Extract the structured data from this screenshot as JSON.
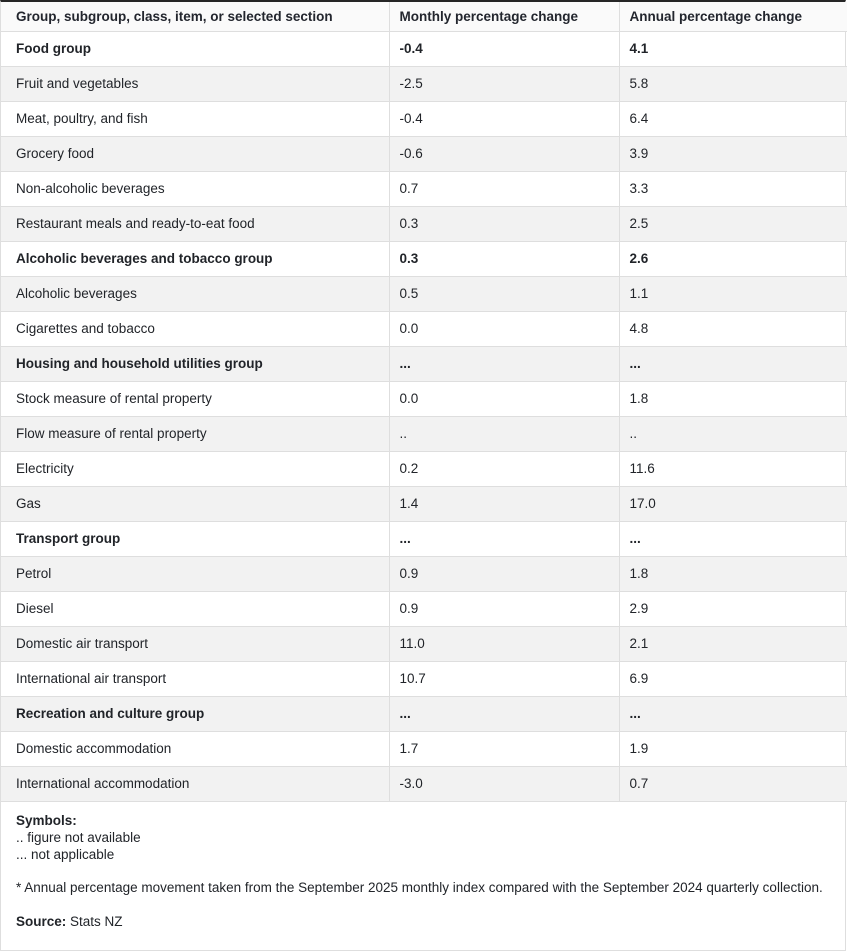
{
  "table": {
    "columns": [
      "Group, subgroup, class, item, or selected section",
      "Monthly percentage change",
      "Annual percentage change"
    ],
    "rows": [
      {
        "label": "Food group",
        "monthly": "-0.4",
        "annual": "4.1",
        "bold": true
      },
      {
        "label": "Fruit and vegetables",
        "monthly": "-2.5",
        "annual": "5.8",
        "bold": false
      },
      {
        "label": "Meat, poultry, and fish",
        "monthly": "-0.4",
        "annual": "6.4",
        "bold": false
      },
      {
        "label": "Grocery food",
        "monthly": "-0.6",
        "annual": "3.9",
        "bold": false
      },
      {
        "label": "Non-alcoholic beverages",
        "monthly": "0.7",
        "annual": "3.3",
        "bold": false
      },
      {
        "label": "Restaurant meals and ready-to-eat food",
        "monthly": "0.3",
        "annual": "2.5",
        "bold": false
      },
      {
        "label": "Alcoholic beverages and tobacco group",
        "monthly": "0.3",
        "annual": "2.6",
        "bold": true
      },
      {
        "label": "Alcoholic beverages",
        "monthly": "0.5",
        "annual": "1.1",
        "bold": false
      },
      {
        "label": "Cigarettes and tobacco",
        "monthly": "0.0",
        "annual": "4.8",
        "bold": false
      },
      {
        "label": "Housing and household utilities group",
        "monthly": "...",
        "annual": "...",
        "bold": true
      },
      {
        "label": "Stock measure of rental property",
        "monthly": "0.0",
        "annual": "1.8",
        "bold": false
      },
      {
        "label": "Flow measure of rental property",
        "monthly": "..",
        "annual": "..",
        "bold": false
      },
      {
        "label": "Electricity",
        "monthly": "0.2",
        "annual": "11.6",
        "bold": false
      },
      {
        "label": "Gas",
        "monthly": "1.4",
        "annual": "17.0",
        "bold": false
      },
      {
        "label": "Transport group",
        "monthly": "...",
        "annual": "...",
        "bold": true
      },
      {
        "label": "Petrol",
        "monthly": "0.9",
        "annual": "1.8",
        "bold": false
      },
      {
        "label": "Diesel",
        "monthly": "0.9",
        "annual": "2.9",
        "bold": false
      },
      {
        "label": "Domestic air transport",
        "monthly": "11.0",
        "annual": "2.1",
        "bold": false
      },
      {
        "label": "International air transport",
        "monthly": "10.7",
        "annual": "6.9",
        "bold": false
      },
      {
        "label": "Recreation and culture group",
        "monthly": "...",
        "annual": "...",
        "bold": true
      },
      {
        "label": "Domestic accommodation",
        "monthly": "1.7",
        "annual": "1.9",
        "bold": false
      },
      {
        "label": "International accommodation",
        "monthly": "-3.0",
        "annual": "0.7",
        "bold": false
      }
    ]
  },
  "footer": {
    "symbols_title": "Symbols:",
    "symbols": [
      ".. figure not available",
      "... not applicable"
    ],
    "note": "* Annual percentage movement taken from the September 2025 monthly index compared with the September 2024 quarterly collection.",
    "source_label": "Source:",
    "source_value": "Stats NZ"
  },
  "colors": {
    "top_border": "#262626",
    "grid_border": "#dedede",
    "row_stripe": "#f2f2f2",
    "text": "#212429"
  }
}
